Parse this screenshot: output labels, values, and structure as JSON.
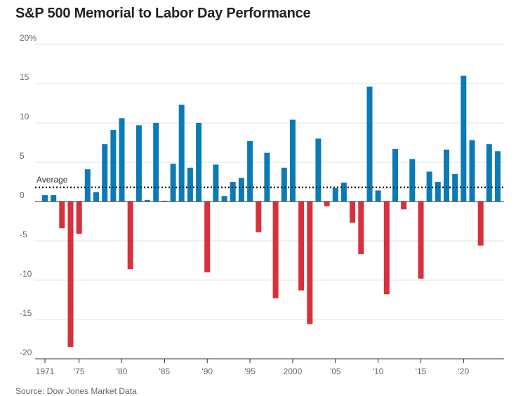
{
  "chart_data": {
    "type": "bar",
    "title": "S&P 500 Memorial to Labor Day Performance",
    "source": "Source: Dow Jones Market Data",
    "ylim": [
      -20,
      20
    ],
    "y_ticks": [
      20,
      15,
      10,
      5,
      0,
      -5,
      -10,
      -15,
      -20
    ],
    "y_tick_labels": [
      "20%",
      "15",
      "10",
      "5",
      "0",
      "-5",
      "-10",
      "-15",
      "-20"
    ],
    "x_range": [
      1971,
      2024
    ],
    "x_ticks": [
      1971,
      1975,
      1980,
      1985,
      1990,
      1995,
      2000,
      2005,
      2010,
      2015,
      2020
    ],
    "x_tick_labels": [
      "1971",
      "'75",
      "'80",
      "'85",
      "'90",
      "'95",
      "2000",
      "'05",
      "'10",
      "'15",
      "'20"
    ],
    "average": {
      "label": "Average",
      "value": 1.8
    },
    "colors": {
      "positive": "#0a7bb5",
      "negative": "#d8303c",
      "grid": "#e3e3e3",
      "axis": "#333333",
      "average": "#222222"
    },
    "years": [
      1971,
      1972,
      1973,
      1974,
      1975,
      1976,
      1977,
      1978,
      1979,
      1980,
      1981,
      1982,
      1983,
      1984,
      1985,
      1986,
      1987,
      1988,
      1989,
      1990,
      1991,
      1992,
      1993,
      1994,
      1995,
      1996,
      1997,
      1998,
      1999,
      2000,
      2001,
      2002,
      2003,
      2004,
      2005,
      2006,
      2007,
      2008,
      2009,
      2010,
      2011,
      2012,
      2013,
      2014,
      2015,
      2016,
      2017,
      2018,
      2019,
      2020,
      2021,
      2022,
      2023,
      2024
    ],
    "values": [
      0.8,
      0.8,
      -3.4,
      -18.5,
      -4.1,
      4.1,
      1.2,
      7.3,
      9.1,
      10.6,
      -8.6,
      9.7,
      0.2,
      10.0,
      0.1,
      4.8,
      12.3,
      4.3,
      10.0,
      -9.0,
      4.7,
      0.7,
      2.5,
      3.0,
      7.7,
      -3.9,
      6.2,
      -12.3,
      4.3,
      10.4,
      -11.3,
      -15.6,
      8.0,
      -0.6,
      1.7,
      2.4,
      -2.7,
      -6.7,
      14.6,
      1.4,
      -11.8,
      6.7,
      -1.0,
      5.4,
      -9.8,
      3.8,
      2.5,
      6.6,
      3.5,
      16.0,
      7.8,
      -5.6,
      7.3,
      6.4
    ]
  }
}
